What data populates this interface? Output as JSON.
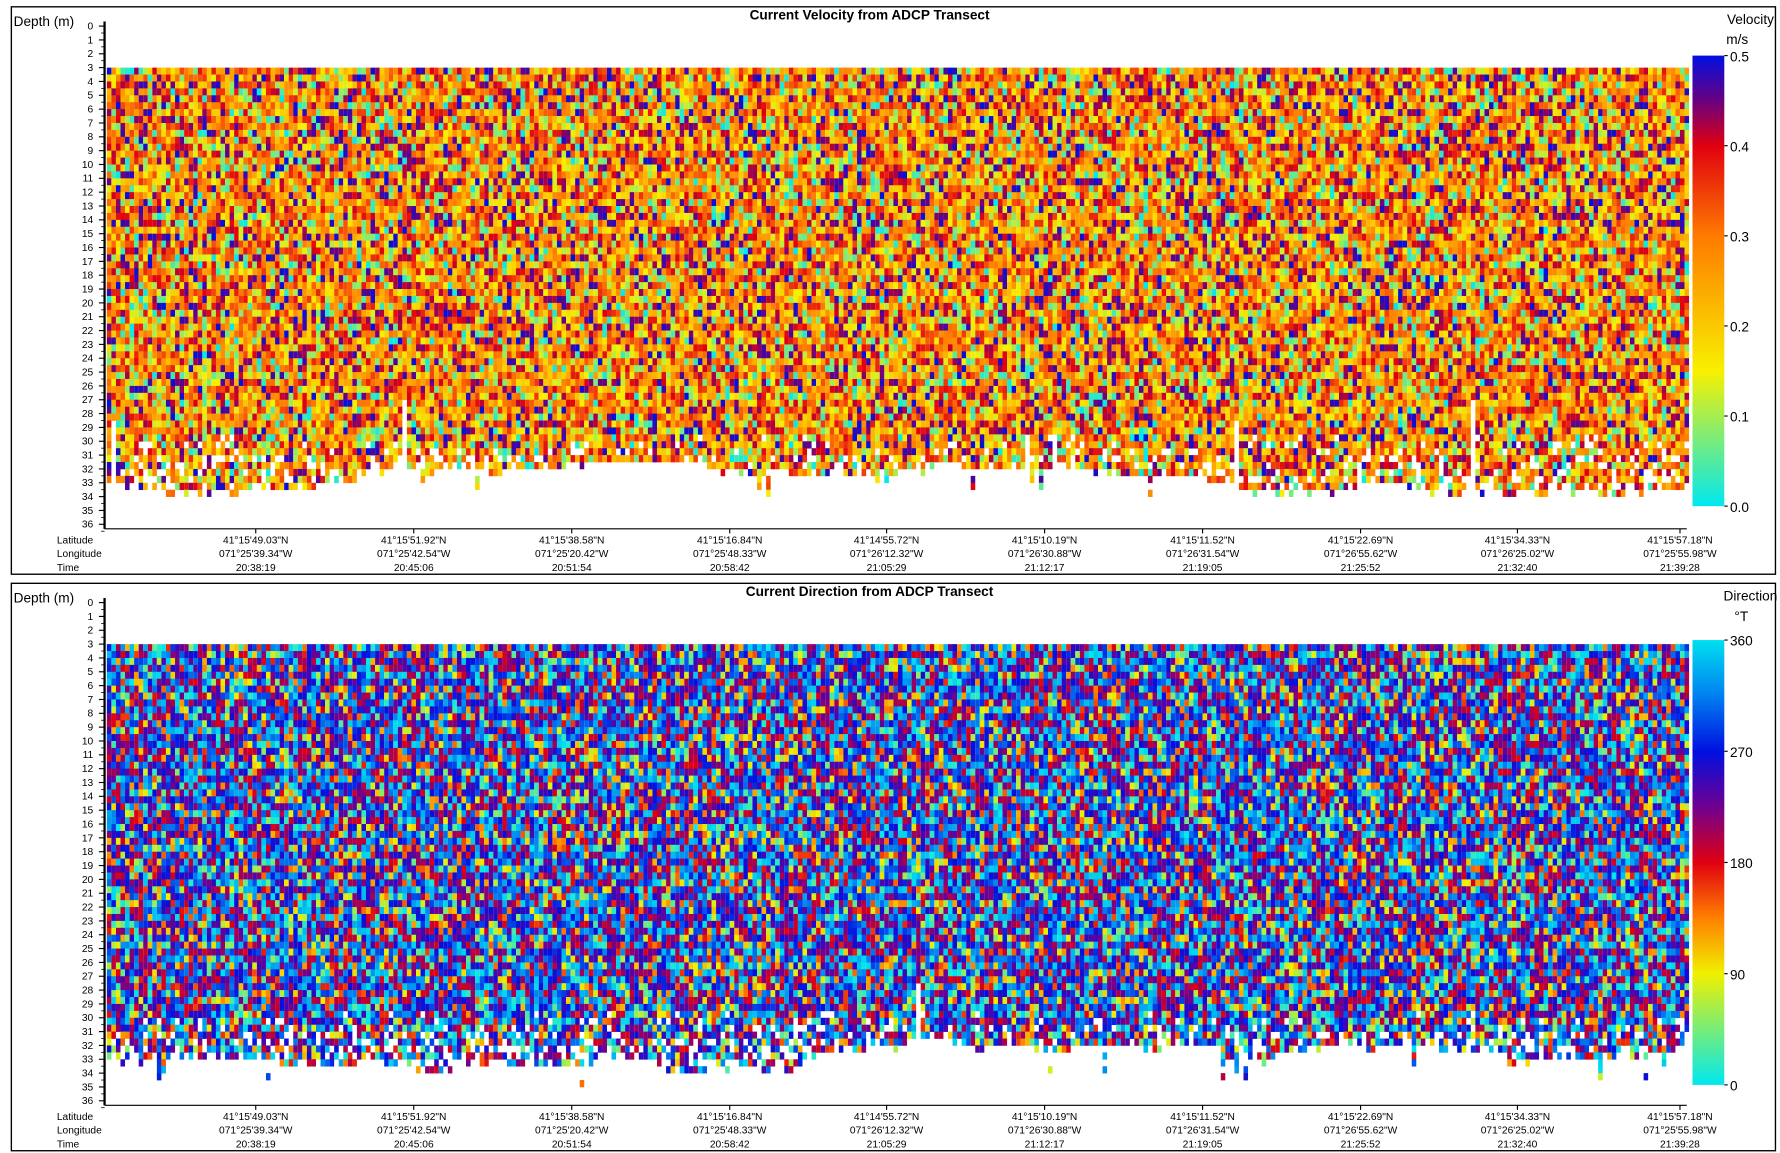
{
  "charts": [
    {
      "type": "heatmap",
      "title": "Current Velocity from ADCP Transect",
      "y_label": "Depth (m)",
      "ylim": [
        0,
        36
      ],
      "yticks": [
        0,
        1,
        2,
        3,
        4,
        5,
        6,
        7,
        8,
        9,
        10,
        11,
        12,
        13,
        14,
        15,
        16,
        17,
        18,
        19,
        20,
        21,
        22,
        23,
        24,
        25,
        26,
        27,
        28,
        29,
        30,
        31,
        32,
        33,
        34,
        35,
        36
      ],
      "y_inverted": true,
      "row_labels": [
        "Latitude",
        "Longitude",
        "Time"
      ],
      "latitude": [
        "41°15'49.03\"N",
        "41°15'51.92\"N",
        "41°15'38.58\"N",
        "41°15'16.84\"N",
        "41°14'55.72\"N",
        "41°15'10.19\"N",
        "41°15'11.52\"N",
        "41°15'22.69\"N",
        "41°15'34.33\"N",
        "41°15'57.18\"N"
      ],
      "longitude": [
        "071°25'39.34\"W",
        "071°25'42.54\"W",
        "071°25'20.42\"W",
        "071°25'48.33\"W",
        "071°26'12.32\"W",
        "071°26'30.88\"W",
        "071°26'31.54\"W",
        "071°26'55.62\"W",
        "071°26'25.02\"W",
        "071°25'55.98\"W"
      ],
      "time": [
        "20:38:19",
        "20:45:06",
        "20:51:54",
        "20:58:42",
        "21:05:29",
        "21:12:17",
        "21:19:05",
        "21:25:52",
        "21:32:40",
        "21:39:28"
      ],
      "colorbar": {
        "title": "Velocity",
        "unit": "m/s",
        "lim": [
          0,
          0.5
        ],
        "ticks": [
          {
            "value": 0,
            "label": "0.0"
          },
          0.1,
          0.2,
          0.3,
          0.4,
          0.5
        ],
        "colorscale": [
          [
            0,
            "#00e8f0"
          ],
          [
            0.15,
            "#f8f000"
          ],
          [
            0.3,
            "#ff7a00"
          ],
          [
            0.4,
            "#e00010"
          ],
          [
            0.45,
            "#6a0080"
          ],
          [
            0.5,
            "#0010e0"
          ]
        ]
      }
    },
    {
      "type": "heatmap",
      "title": "Current Direction from ADCP Transect",
      "y_label": "Depth (m)",
      "ylim": [
        0,
        36
      ],
      "yticks": [
        0,
        1,
        2,
        3,
        4,
        5,
        6,
        7,
        8,
        9,
        10,
        11,
        12,
        13,
        14,
        15,
        16,
        17,
        18,
        19,
        20,
        21,
        22,
        23,
        24,
        25,
        26,
        27,
        28,
        29,
        30,
        31,
        32,
        33,
        34,
        35,
        36
      ],
      "y_inverted": true,
      "row_labels": [
        "Latitude",
        "Longitude",
        "Time"
      ],
      "latitude": [
        "41°15'49.03\"N",
        "41°15'51.92\"N",
        "41°15'38.58\"N",
        "41°15'16.84\"N",
        "41°14'55.72\"N",
        "41°15'10.19\"N",
        "41°15'11.52\"N",
        "41°15'22.69\"N",
        "41°15'34.33\"N",
        "41°15'57.18\"N"
      ],
      "longitude": [
        "071°25'39.34\"W",
        "071°25'42.54\"W",
        "071°25'20.42\"W",
        "071°25'48.33\"W",
        "071°26'12.32\"W",
        "071°26'30.88\"W",
        "071°26'31.54\"W",
        "071°26'55.62\"W",
        "071°26'25.02\"W",
        "071°25'55.98\"W"
      ],
      "time": [
        "20:38:19",
        "20:45:06",
        "20:51:54",
        "20:58:42",
        "21:05:29",
        "21:12:17",
        "21:19:05",
        "21:25:52",
        "21:32:40",
        "21:39:28"
      ],
      "colorbar": {
        "title": "Direction",
        "unit": "°T",
        "lim": [
          0,
          360
        ],
        "ticks": [
          0,
          90,
          180,
          270,
          360
        ],
        "colorscale": [
          [
            0,
            "#00e8f0"
          ],
          [
            90,
            "#f0f000"
          ],
          [
            135,
            "#ff8000"
          ],
          [
            180,
            "#e00010"
          ],
          [
            225,
            "#700090"
          ],
          [
            270,
            "#0010e0"
          ],
          [
            315,
            "#0080f0"
          ],
          [
            360,
            "#00e0f0"
          ]
        ]
      }
    }
  ]
}
